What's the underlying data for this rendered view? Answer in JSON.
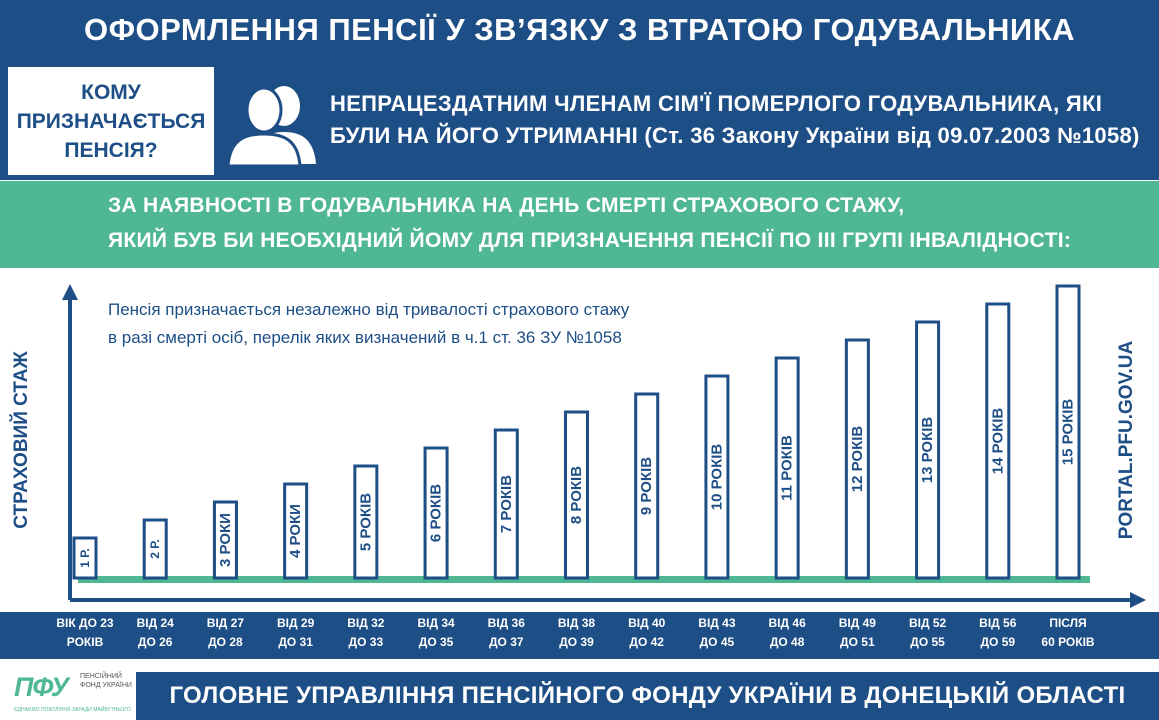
{
  "header": {
    "title": "ОФОРМЛЕННЯ ПЕНСІЇ У ЗВ’ЯЗКУ З ВТРАТОЮ ГОДУВАЛЬНИКА"
  },
  "who": {
    "question": "КОМУ ПРИЗНАЧАЄТЬСЯ ПЕНСІЯ?",
    "answer_line1": "НЕПРАЦЕЗДАТНИМ ЧЛЕНАМ СІМ'Ї ПОМЕРЛОГО ГОДУВАЛЬНИКА, ЯКІ",
    "answer_line2": "БУЛИ НА ЙОГО УТРИМАННІ (Ст. 36 Закону України від 09.07.2003 №1058)"
  },
  "condition": {
    "line1": "ЗА НАЯВНОСТІ В ГОДУВАЛЬНИКА  НА ДЕНЬ СМЕРТІ СТРАХОВОГО  СТАЖУ,",
    "line2": "ЯКИЙ БУВ БИ НЕОБХІДНИЙ  ЙОМУ  ДЛЯ ПРИЗНАЧЕННЯ ПЕНСІЇ ПО ІІІ ГРУПІ ІНВАЛІДНОСТІ:"
  },
  "note": {
    "line1": "Пенсія призначається незалежно від тривалості страхового стажу",
    "line2": "в разі смерті осіб, перелік яких визначений в ч.1 ст. 36 ЗУ №1058"
  },
  "side_label": "PORTAL.PFU.GOV.UA",
  "footer": {
    "title": "ГОЛОВНЕ УПРАВЛІННЯ ПЕНСІЙНОГО ФОНДУ УКРАЇНИ В ДОНЕЦЬКІЙ ОБЛАСТІ"
  },
  "logo": {
    "mark": "ПФУ",
    "text": "ПЕНСІЙНИЙ ФОНД УКРАЇНИ",
    "tagline": "ЄДНАЄМО ПОКОЛІННЯ ЗАРАДИ МАЙБУТНЬОГО"
  },
  "colors": {
    "primary": "#1e4e86",
    "accent": "#4fb793",
    "background": "#ffffff"
  },
  "icons": {
    "who": "people-icon"
  },
  "chart_data": {
    "type": "bar",
    "ylabel": "СТРАХОВИЙ СТАЖ",
    "categories": [
      {
        "line1": "ВІК ДО 23",
        "line2": "РОКІВ"
      },
      {
        "line1": "ВІД 24",
        "line2": "ДО 26"
      },
      {
        "line1": "ВІД 27",
        "line2": "ДО 28"
      },
      {
        "line1": "ВІД 29",
        "line2": "ДО 31"
      },
      {
        "line1": "ВІД 32",
        "line2": "ДО 33"
      },
      {
        "line1": "ВІД 34",
        "line2": "ДО 35"
      },
      {
        "line1": "ВІД 36",
        "line2": "ДО 37"
      },
      {
        "line1": "ВІД 38",
        "line2": "ДО 39"
      },
      {
        "line1": "ВІД 40",
        "line2": "ДО 42"
      },
      {
        "line1": "ВІД 43",
        "line2": "ДО 45"
      },
      {
        "line1": "ВІД 46",
        "line2": "ДО 48"
      },
      {
        "line1": "ВІД 49",
        "line2": "ДО 51"
      },
      {
        "line1": "ВІД 52",
        "line2": "ДО 55"
      },
      {
        "line1": "ВІД 56",
        "line2": "ДО 59"
      },
      {
        "line1": "ПІСЛЯ",
        "line2": "60 РОКІВ"
      }
    ],
    "values": [
      1,
      2,
      3,
      4,
      5,
      6,
      7,
      8,
      9,
      10,
      11,
      12,
      13,
      14,
      15
    ],
    "labels": [
      "1 Р.",
      "2 Р.",
      "3 РОКИ",
      "4 РОКИ",
      "5 РОКІВ",
      "6 РОКІВ",
      "7 РОКІВ",
      "8 РОКІВ",
      "9 РОКІВ",
      "10 РОКІВ",
      "11 РОКІВ",
      "12 РОКІВ",
      "13 РОКІВ",
      "14 РОКІВ",
      "15 РОКІВ"
    ],
    "ylim": [
      0,
      15
    ],
    "grid": false,
    "legend": "none"
  }
}
